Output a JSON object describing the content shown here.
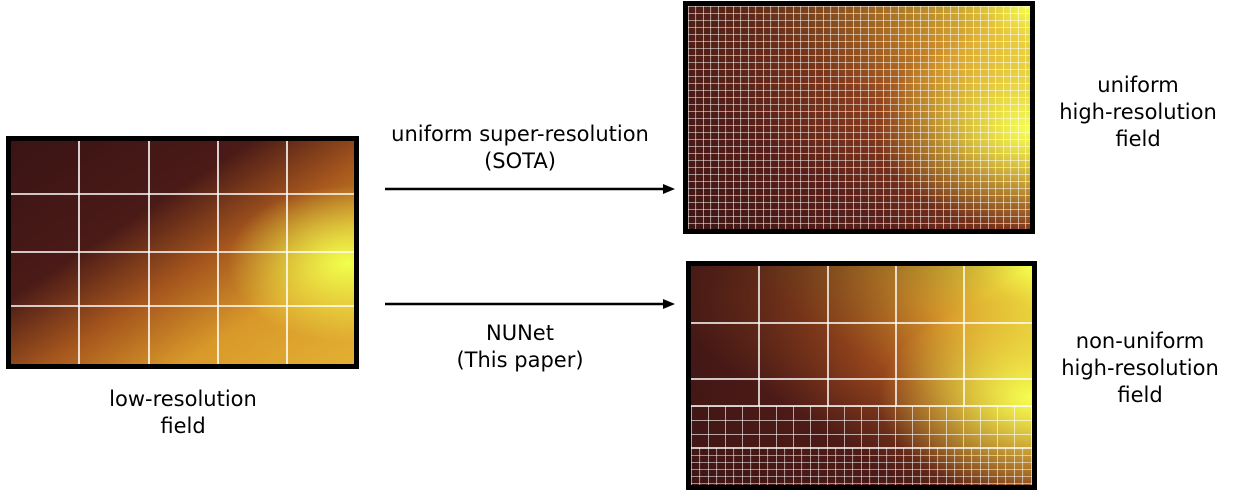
{
  "labels": {
    "low_res_line1": "low-resolution",
    "low_res_line2": "field",
    "sota_line1": "uniform super-resolution",
    "sota_line2": "(SOTA)",
    "nunet_line1": "NUNet",
    "nunet_line2": "(This paper)",
    "uniform_line1": "uniform",
    "uniform_line2": "high-resolution",
    "uniform_line3": "field",
    "nonuniform_line1": "non-uniform",
    "nonuniform_line2": "high-resolution",
    "nonuniform_line3": "field"
  },
  "colors": {
    "frame": "#000000",
    "grid": "#ffffff",
    "arrow": "#000000",
    "heat_dark": "#3a1414",
    "heat_mid": "#c86a1e",
    "heat_warm": "#e0a22a",
    "heat_bright": "#f3ff4a"
  }
}
